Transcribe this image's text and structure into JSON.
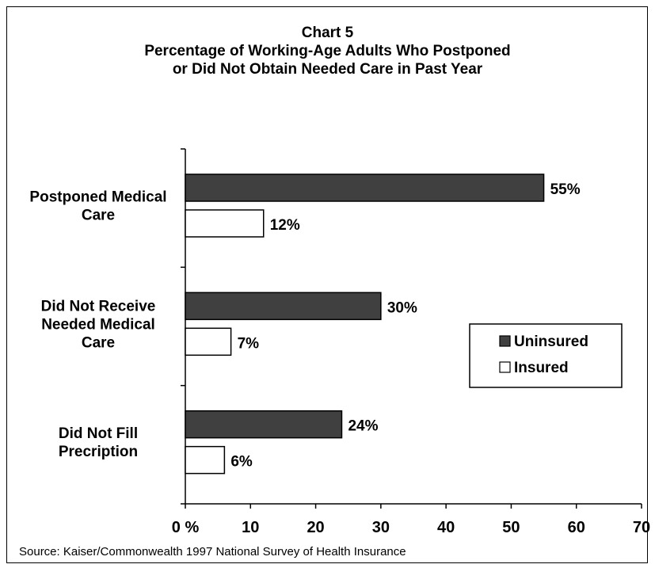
{
  "chart_data": {
    "type": "bar",
    "orientation": "horizontal",
    "title": [
      "Chart 5",
      "Percentage of Working-Age Adults Who Postponed",
      "or Did Not Obtain Needed Care in Past Year"
    ],
    "categories": [
      [
        "Postponed Medical",
        "Care"
      ],
      [
        "Did Not Receive",
        "Needed Medical",
        "Care"
      ],
      [
        "Did Not Fill",
        "Precription"
      ]
    ],
    "series": [
      {
        "name": "Uninsured",
        "values": [
          55,
          30,
          24
        ],
        "labels": [
          "55%",
          "30%",
          "24%"
        ],
        "color": "#404040"
      },
      {
        "name": "Insured",
        "values": [
          12,
          7,
          6
        ],
        "labels": [
          "12%",
          "7%",
          "6%"
        ],
        "color": "#ffffff"
      }
    ],
    "xlim": [
      0,
      70
    ],
    "xticks": [
      "0 %",
      "10",
      "20",
      "30",
      "40",
      "50",
      "60",
      "70"
    ],
    "legend": "right",
    "grid": false
  },
  "source": "Source: Kaiser/Commonwealth 1997 National Survey of Health Insurance"
}
